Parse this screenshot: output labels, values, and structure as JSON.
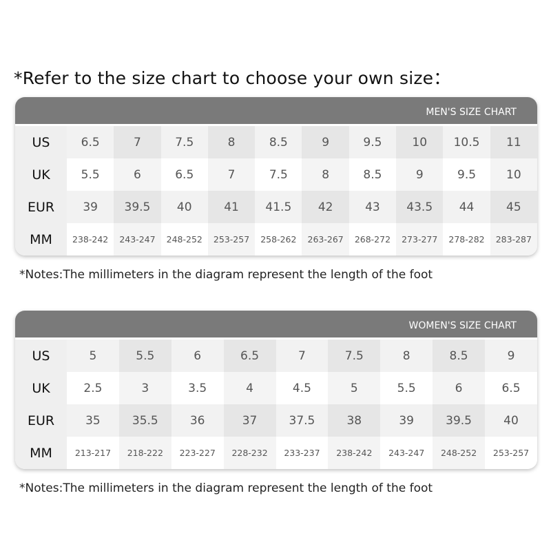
{
  "title": "*Refer to the size chart to choose your own size：",
  "row_labels": [
    "US",
    "UK",
    "EUR",
    "MM"
  ],
  "men": {
    "header": "MEN'S SIZE CHART",
    "us": [
      "6.5",
      "7",
      "7.5",
      "8",
      "8.5",
      "9",
      "9.5",
      "10",
      "10.5",
      "11"
    ],
    "uk": [
      "5.5",
      "6",
      "6.5",
      "7",
      "7.5",
      "8",
      "8.5",
      "9",
      "9.5",
      "10"
    ],
    "eur": [
      "39",
      "39.5",
      "40",
      "41",
      "41.5",
      "42",
      "43",
      "43.5",
      "44",
      "45"
    ],
    "mm": [
      "238-242",
      "243-247",
      "248-252",
      "253-257",
      "258-262",
      "263-267",
      "268-272",
      "273-277",
      "278-282",
      "283-287"
    ],
    "note": "*Notes:The millimeters in the diagram represent the length of the foot"
  },
  "women": {
    "header": "WOMEN'S SIZE CHART",
    "us": [
      "5",
      "5.5",
      "6",
      "6.5",
      "7",
      "7.5",
      "8",
      "8.5",
      "9"
    ],
    "uk": [
      "2.5",
      "3",
      "3.5",
      "4",
      "4.5",
      "5",
      "5.5",
      "6",
      "6.5"
    ],
    "eur": [
      "35",
      "35.5",
      "36",
      "37",
      "37.5",
      "38",
      "39",
      "39.5",
      "40"
    ],
    "mm": [
      "213-217",
      "218-222",
      "223-227",
      "228-232",
      "233-237",
      "238-242",
      "243-247",
      "248-252",
      "253-257"
    ],
    "note": "*Notes:The millimeters in the diagram represent the length of the foot"
  }
}
